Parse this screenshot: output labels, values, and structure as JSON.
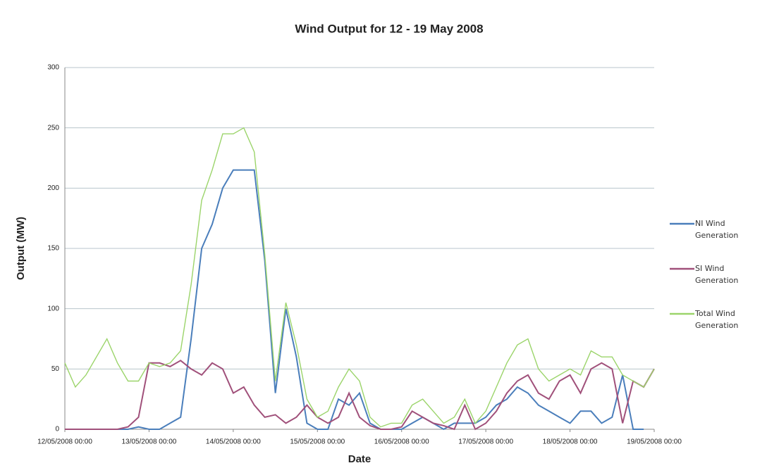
{
  "chart_data": {
    "type": "line",
    "title": "Wind Output for 12 - 19 May 2008",
    "x_label": "Date",
    "y_label": "Output (MW)",
    "x": [
      "2008-05-12 00:00",
      "2008-05-12 03:00",
      "2008-05-12 06:00",
      "2008-05-12 09:00",
      "2008-05-12 12:00",
      "2008-05-12 15:00",
      "2008-05-12 18:00",
      "2008-05-12 21:00",
      "2008-05-13 00:00",
      "2008-05-13 03:00",
      "2008-05-13 06:00",
      "2008-05-13 09:00",
      "2008-05-13 12:00",
      "2008-05-13 15:00",
      "2008-05-13 18:00",
      "2008-05-13 21:00",
      "2008-05-14 00:00",
      "2008-05-14 03:00",
      "2008-05-14 06:00",
      "2008-05-14 09:00",
      "2008-05-14 12:00",
      "2008-05-14 15:00",
      "2008-05-14 18:00",
      "2008-05-14 21:00",
      "2008-05-15 00:00",
      "2008-05-15 03:00",
      "2008-05-15 06:00",
      "2008-05-15 09:00",
      "2008-05-15 12:00",
      "2008-05-15 15:00",
      "2008-05-15 18:00",
      "2008-05-15 21:00",
      "2008-05-16 00:00",
      "2008-05-16 03:00",
      "2008-05-16 06:00",
      "2008-05-16 09:00",
      "2008-05-16 12:00",
      "2008-05-16 15:00",
      "2008-05-16 18:00",
      "2008-05-16 21:00",
      "2008-05-17 00:00",
      "2008-05-17 03:00",
      "2008-05-17 06:00",
      "2008-05-17 09:00",
      "2008-05-17 12:00",
      "2008-05-17 15:00",
      "2008-05-17 18:00",
      "2008-05-17 21:00",
      "2008-05-18 00:00",
      "2008-05-18 03:00",
      "2008-05-18 06:00",
      "2008-05-18 09:00",
      "2008-05-18 12:00",
      "2008-05-18 15:00",
      "2008-05-18 18:00",
      "2008-05-18 21:00",
      "2008-05-19 00:00"
    ],
    "series": [
      {
        "name": "NI Wind Generation",
        "color": "#4a7ebb",
        "values": [
          0,
          0,
          0,
          0,
          0,
          0,
          0,
          2,
          0,
          0,
          5,
          10,
          75,
          150,
          170,
          200,
          215,
          215,
          215,
          140,
          30,
          100,
          60,
          5,
          0,
          0,
          25,
          20,
          30,
          5,
          0,
          0,
          0,
          5,
          10,
          5,
          0,
          5,
          5,
          5,
          10,
          20,
          25,
          35,
          30,
          20,
          15,
          10,
          5,
          15,
          15,
          5,
          10,
          45,
          0,
          0,
          null
        ]
      },
      {
        "name": "SI Wind Generation",
        "color": "#a0507a",
        "values": [
          0,
          0,
          0,
          0,
          0,
          0,
          2,
          10,
          55,
          55,
          52,
          57,
          50,
          45,
          55,
          50,
          30,
          35,
          20,
          10,
          12,
          5,
          10,
          20,
          10,
          5,
          10,
          30,
          10,
          3,
          0,
          0,
          2,
          15,
          10,
          5,
          3,
          0,
          20,
          0,
          5,
          15,
          30,
          40,
          45,
          30,
          25,
          40,
          45,
          30,
          50,
          55,
          50,
          5,
          40,
          35,
          50
        ]
      },
      {
        "name": "Total Wind Generation",
        "color": "#9bd46a",
        "values": [
          55,
          35,
          45,
          60,
          75,
          55,
          40,
          40,
          55,
          52,
          55,
          65,
          120,
          190,
          215,
          245,
          245,
          250,
          230,
          145,
          40,
          105,
          70,
          25,
          10,
          15,
          35,
          50,
          40,
          10,
          2,
          5,
          5,
          20,
          25,
          15,
          5,
          10,
          25,
          5,
          15,
          35,
          55,
          70,
          75,
          50,
          40,
          45,
          50,
          45,
          65,
          60,
          60,
          45,
          40,
          35,
          50
        ]
      }
    ],
    "xlim": [
      "2008-05-12 00:00",
      "2008-05-19 00:00"
    ],
    "xticks": [
      {
        "value": "2008-05-12 00:00",
        "label": "12/05/2008 00:00"
      },
      {
        "value": "2008-05-13 00:00",
        "label": "13/05/2008 00:00"
      },
      {
        "value": "2008-05-14 00:00",
        "label": "14/05/2008 00:00"
      },
      {
        "value": "2008-05-15 00:00",
        "label": "15/05/2008 00:00"
      },
      {
        "value": "2008-05-16 00:00",
        "label": "16/05/2008 00:00"
      },
      {
        "value": "2008-05-17 00:00",
        "label": "17/05/2008 00:00"
      },
      {
        "value": "2008-05-18 00:00",
        "label": "18/05/2008 00:00"
      },
      {
        "value": "2008-05-19 00:00",
        "label": "19/05/2008 00:00"
      }
    ],
    "ylim": [
      0,
      300
    ],
    "yticks": [
      0,
      50,
      100,
      150,
      200,
      250,
      300
    ],
    "grid": true,
    "legend": "right"
  }
}
